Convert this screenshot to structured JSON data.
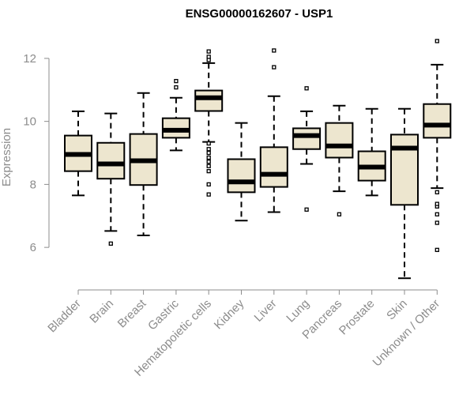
{
  "chart_data": {
    "type": "boxplot",
    "title": "ENSG00000162607 - USP1",
    "xlabel": "",
    "ylabel": "Expression",
    "ylim": [
      4.9,
      12.75
    ],
    "yticks": [
      6,
      8,
      10,
      12
    ],
    "box_fill": "#ede6cf",
    "categories": [
      "Bladder",
      "Brain",
      "Breast",
      "Gastric",
      "Hematopoietic cells",
      "Kidney",
      "Liver",
      "Lung",
      "Pancreas",
      "Prostate",
      "Skin",
      "Unknown / Other"
    ],
    "boxes": [
      {
        "name": "Bladder",
        "whisker_low": 7.65,
        "q1": 8.42,
        "median": 8.95,
        "q3": 9.55,
        "whisker_high": 10.32,
        "outliers": []
      },
      {
        "name": "Brain",
        "whisker_low": 6.52,
        "q1": 8.18,
        "median": 8.65,
        "q3": 9.32,
        "whisker_high": 10.25,
        "outliers": [
          6.12
        ]
      },
      {
        "name": "Breast",
        "whisker_low": 6.38,
        "q1": 7.98,
        "median": 8.75,
        "q3": 9.6,
        "whisker_high": 10.9,
        "outliers": []
      },
      {
        "name": "Gastric",
        "whisker_low": 9.08,
        "q1": 9.48,
        "median": 9.72,
        "q3": 10.1,
        "whisker_high": 10.75,
        "outliers": [
          11.08,
          11.28
        ]
      },
      {
        "name": "Hematopoietic cells",
        "whisker_low": 9.35,
        "q1": 10.33,
        "median": 10.75,
        "q3": 10.98,
        "whisker_high": 11.85,
        "outliers": [
          7.68,
          8.0,
          8.42,
          8.58,
          8.72,
          8.85,
          9.0,
          9.12,
          9.3,
          11.95,
          12.05,
          12.22
        ]
      },
      {
        "name": "Kidney",
        "whisker_low": 6.85,
        "q1": 7.75,
        "median": 8.08,
        "q3": 8.8,
        "whisker_high": 9.95,
        "outliers": []
      },
      {
        "name": "Liver",
        "whisker_low": 7.12,
        "q1": 7.92,
        "median": 8.32,
        "q3": 9.18,
        "whisker_high": 10.8,
        "outliers": [
          11.72,
          12.25
        ]
      },
      {
        "name": "Lung",
        "whisker_low": 8.65,
        "q1": 9.12,
        "median": 9.55,
        "q3": 9.78,
        "whisker_high": 10.32,
        "outliers": [
          7.2,
          11.05
        ]
      },
      {
        "name": "Pancreas",
        "whisker_low": 7.78,
        "q1": 8.85,
        "median": 9.22,
        "q3": 9.95,
        "whisker_high": 10.5,
        "outliers": [
          7.05
        ]
      },
      {
        "name": "Prostate",
        "whisker_low": 7.65,
        "q1": 8.12,
        "median": 8.55,
        "q3": 9.05,
        "whisker_high": 10.4,
        "outliers": []
      },
      {
        "name": "Skin",
        "whisker_low": 5.02,
        "q1": 7.35,
        "median": 9.15,
        "q3": 9.58,
        "whisker_high": 10.4,
        "outliers": []
      },
      {
        "name": "Unknown / Other",
        "whisker_low": 7.88,
        "q1": 9.48,
        "median": 9.88,
        "q3": 10.55,
        "whisker_high": 11.8,
        "outliers": [
          5.92,
          6.78,
          7.05,
          7.3,
          7.38,
          7.75,
          12.55
        ]
      }
    ]
  }
}
